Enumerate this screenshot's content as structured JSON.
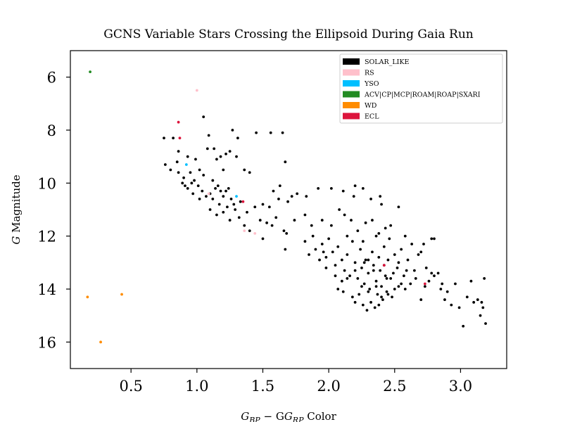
{
  "chart_data": {
    "type": "scatter",
    "title": "GCNS Variable Stars Crossing the Ellipsoid During Gaia Run",
    "xlabel": {
      "base": "G",
      "sub1": "BP",
      "mid": " − G",
      "sub2": "RP",
      "tail": " Color"
    },
    "ylabel": {
      "italic": "G",
      "rest": " Magnitude"
    },
    "xlim": [
      0.04,
      3.35
    ],
    "ylim": [
      17.0,
      5.0
    ],
    "y_inverted": true,
    "xticks": [
      {
        "value": 0.5,
        "label": "0.5"
      },
      {
        "value": 1.0,
        "label": "1.0"
      },
      {
        "value": 1.5,
        "label": "1.5"
      },
      {
        "value": 2.0,
        "label": "2.0"
      },
      {
        "value": 2.5,
        "label": "2.5"
      },
      {
        "value": 3.0,
        "label": "3.0"
      }
    ],
    "yticks": [
      {
        "value": 6,
        "label": "6"
      },
      {
        "value": 8,
        "label": "8"
      },
      {
        "value": 10,
        "label": "10"
      },
      {
        "value": 12,
        "label": "12"
      },
      {
        "value": 14,
        "label": "14"
      },
      {
        "value": 16,
        "label": "16"
      }
    ],
    "grid": false,
    "legend_position": "top-right",
    "series": [
      {
        "name": "SOLAR_LIKE",
        "color": "#000000",
        "points": [
          [
            0.75,
            8.3
          ],
          [
            0.82,
            8.3
          ],
          [
            0.86,
            8.8
          ],
          [
            1.05,
            7.5
          ],
          [
            1.09,
            8.2
          ],
          [
            1.27,
            8.0
          ],
          [
            1.31,
            8.3
          ],
          [
            1.45,
            8.1
          ],
          [
            1.56,
            8.1
          ],
          [
            1.65,
            8.1
          ],
          [
            0.85,
            9.2
          ],
          [
            0.93,
            9.0
          ],
          [
            0.99,
            9.1
          ],
          [
            1.02,
            9.5
          ],
          [
            1.08,
            8.7
          ],
          [
            1.13,
            8.7
          ],
          [
            1.15,
            9.1
          ],
          [
            1.18,
            9.0
          ],
          [
            1.2,
            9.5
          ],
          [
            1.22,
            8.9
          ],
          [
            1.25,
            8.8
          ],
          [
            1.3,
            9.0
          ],
          [
            1.36,
            9.5
          ],
          [
            1.4,
            9.6
          ],
          [
            0.76,
            9.3
          ],
          [
            0.8,
            9.5
          ],
          [
            0.86,
            9.6
          ],
          [
            0.9,
            9.8
          ],
          [
            0.95,
            9.6
          ],
          [
            0.98,
            9.9
          ],
          [
            0.91,
            10.1
          ],
          [
            0.93,
            10.2
          ],
          [
            0.96,
            10.0
          ],
          [
            1.01,
            10.1
          ],
          [
            1.04,
            10.3
          ],
          [
            1.07,
            10.5
          ],
          [
            1.1,
            10.4
          ],
          [
            1.12,
            10.6
          ],
          [
            1.14,
            10.2
          ],
          [
            1.17,
            10.8
          ],
          [
            1.2,
            10.5
          ],
          [
            1.23,
            10.9
          ],
          [
            1.26,
            10.6
          ],
          [
            1.29,
            11.0
          ],
          [
            1.33,
            10.7
          ],
          [
            1.38,
            11.1
          ],
          [
            1.44,
            10.9
          ],
          [
            1.5,
            10.8
          ],
          [
            1.55,
            10.9
          ],
          [
            1.62,
            10.6
          ],
          [
            1.58,
            10.3
          ],
          [
            1.63,
            10.1
          ],
          [
            1.67,
            9.2
          ],
          [
            1.69,
            10.7
          ],
          [
            1.72,
            10.5
          ],
          [
            1.76,
            10.4
          ],
          [
            1.83,
            10.5
          ],
          [
            1.92,
            10.2
          ],
          [
            2.02,
            10.2
          ],
          [
            2.11,
            10.3
          ],
          [
            2.19,
            10.5
          ],
          [
            2.2,
            10.1
          ],
          [
            2.26,
            10.2
          ],
          [
            2.32,
            10.6
          ],
          [
            2.39,
            10.5
          ],
          [
            2.4,
            10.8
          ],
          [
            2.53,
            10.9
          ],
          [
            1.1,
            11.0
          ],
          [
            1.15,
            11.2
          ],
          [
            1.2,
            11.1
          ],
          [
            1.25,
            11.4
          ],
          [
            1.32,
            11.3
          ],
          [
            1.36,
            11.6
          ],
          [
            1.4,
            11.8
          ],
          [
            1.48,
            11.4
          ],
          [
            1.5,
            12.1
          ],
          [
            1.53,
            11.5
          ],
          [
            1.57,
            11.6
          ],
          [
            1.6,
            11.3
          ],
          [
            1.66,
            11.8
          ],
          [
            1.68,
            11.9
          ],
          [
            1.67,
            12.5
          ],
          [
            1.74,
            11.4
          ],
          [
            1.82,
            11.2
          ],
          [
            1.87,
            11.6
          ],
          [
            1.95,
            11.4
          ],
          [
            2.02,
            11.6
          ],
          [
            2.08,
            11.0
          ],
          [
            2.12,
            11.2
          ],
          [
            2.17,
            11.4
          ],
          [
            2.22,
            11.8
          ],
          [
            2.28,
            11.5
          ],
          [
            2.33,
            11.4
          ],
          [
            2.38,
            11.9
          ],
          [
            2.43,
            11.7
          ],
          [
            2.47,
            11.6
          ],
          [
            1.82,
            12.2
          ],
          [
            1.85,
            12.7
          ],
          [
            1.88,
            12.0
          ],
          [
            1.9,
            12.5
          ],
          [
            1.93,
            12.9
          ],
          [
            1.95,
            12.3
          ],
          [
            1.98,
            12.8
          ],
          [
            2.0,
            12.1
          ],
          [
            2.03,
            12.6
          ],
          [
            2.05,
            13.1
          ],
          [
            2.07,
            12.4
          ],
          [
            2.1,
            12.9
          ],
          [
            2.12,
            13.3
          ],
          [
            2.14,
            12.7
          ],
          [
            2.16,
            13.5
          ],
          [
            2.18,
            12.2
          ],
          [
            2.2,
            13.0
          ],
          [
            2.22,
            13.6
          ],
          [
            2.24,
            12.5
          ],
          [
            2.25,
            13.2
          ],
          [
            2.27,
            13.8
          ],
          [
            2.28,
            12.9
          ],
          [
            2.3,
            13.4
          ],
          [
            2.31,
            14.0
          ],
          [
            2.33,
            12.6
          ],
          [
            2.34,
            13.1
          ],
          [
            2.36,
            13.7
          ],
          [
            2.37,
            14.2
          ],
          [
            2.38,
            12.8
          ],
          [
            2.39,
            13.3
          ],
          [
            2.4,
            13.9
          ],
          [
            2.42,
            12.4
          ],
          [
            2.43,
            13.5
          ],
          [
            2.44,
            14.1
          ],
          [
            2.45,
            12.9
          ],
          [
            2.47,
            13.6
          ],
          [
            2.48,
            14.3
          ],
          [
            2.5,
            12.7
          ],
          [
            2.52,
            13.2
          ],
          [
            2.53,
            13.9
          ],
          [
            2.55,
            12.5
          ],
          [
            2.57,
            13.5
          ],
          [
            2.58,
            14.0
          ],
          [
            2.6,
            12.9
          ],
          [
            2.62,
            13.8
          ],
          [
            2.65,
            13.3
          ],
          [
            2.68,
            12.7
          ],
          [
            2.7,
            14.4
          ],
          [
            2.72,
            12.3
          ],
          [
            2.74,
            13.2
          ],
          [
            2.76,
            13.7
          ],
          [
            2.78,
            12.1
          ],
          [
            2.8,
            13.5
          ],
          [
            2.83,
            13.4
          ],
          [
            2.85,
            14.0
          ],
          [
            2.88,
            14.4
          ],
          [
            2.9,
            14.1
          ],
          [
            2.93,
            14.6
          ],
          [
            2.96,
            13.8
          ],
          [
            2.99,
            14.7
          ],
          [
            3.02,
            15.4
          ],
          [
            3.05,
            14.3
          ],
          [
            3.08,
            13.7
          ],
          [
            3.1,
            14.5
          ],
          [
            3.13,
            14.4
          ],
          [
            3.15,
            15.0
          ],
          [
            3.16,
            14.5
          ],
          [
            3.18,
            13.6
          ],
          [
            3.19,
            15.3
          ],
          [
            3.17,
            14.7
          ],
          [
            2.2,
            14.5
          ],
          [
            2.23,
            14.2
          ],
          [
            2.26,
            14.6
          ],
          [
            2.29,
            14.8
          ],
          [
            2.32,
            14.5
          ],
          [
            2.35,
            14.7
          ],
          [
            2.38,
            14.6
          ],
          [
            2.41,
            14.4
          ],
          [
            2.45,
            14.2
          ],
          [
            2.5,
            14.0
          ],
          [
            2.55,
            13.8
          ],
          [
            2.1,
            13.7
          ],
          [
            2.07,
            14.0
          ],
          [
            2.05,
            13.5
          ],
          [
            1.98,
            13.2
          ],
          [
            1.96,
            12.6
          ],
          [
            2.14,
            12.0
          ],
          [
            2.26,
            12.2
          ],
          [
            2.36,
            12.0
          ],
          [
            2.46,
            12.1
          ],
          [
            2.58,
            12.0
          ],
          [
            2.63,
            12.3
          ],
          [
            2.7,
            12.6
          ],
          [
            2.8,
            12.1
          ],
          [
            2.3,
            12.9
          ],
          [
            2.27,
            13.0
          ],
          [
            2.34,
            13.3
          ],
          [
            2.42,
            13.1
          ],
          [
            2.2,
            13.3
          ],
          [
            2.14,
            13.6
          ],
          [
            2.11,
            14.1
          ],
          [
            2.18,
            14.3
          ],
          [
            2.25,
            13.9
          ],
          [
            2.3,
            14.1
          ],
          [
            2.36,
            13.9
          ],
          [
            2.4,
            14.3
          ],
          [
            2.44,
            13.6
          ],
          [
            2.49,
            13.4
          ],
          [
            2.53,
            13.0
          ],
          [
            2.59,
            13.3
          ],
          [
            2.66,
            13.6
          ],
          [
            2.73,
            13.9
          ],
          [
            2.78,
            13.4
          ],
          [
            2.86,
            13.8
          ],
          [
            1.05,
            9.7
          ],
          [
            1.12,
            9.9
          ],
          [
            1.16,
            10.1
          ],
          [
            1.22,
            10.3
          ],
          [
            1.28,
            10.8
          ],
          [
            1.02,
            10.6
          ],
          [
            0.97,
            10.4
          ],
          [
            0.89,
            10.0
          ],
          [
            1.18,
            10.3
          ],
          [
            1.24,
            10.2
          ]
        ]
      },
      {
        "name": "RS",
        "color": "#ffc0cb",
        "points": [
          [
            1.0,
            6.5
          ],
          [
            1.36,
            11.8
          ],
          [
            1.44,
            11.9
          ],
          [
            1.09,
            10.4
          ]
        ]
      },
      {
        "name": "YSO",
        "color": "#00bfff",
        "points": [
          [
            0.92,
            9.3
          ],
          [
            1.3,
            10.5
          ]
        ]
      },
      {
        "name": "ACV|CP|MCP|ROAM|ROAP|SXARI",
        "color": "#228b22",
        "points": [
          [
            0.19,
            5.8
          ]
        ]
      },
      {
        "name": "WD",
        "color": "#ff8c00",
        "points": [
          [
            0.17,
            14.3
          ],
          [
            0.43,
            14.2
          ],
          [
            0.27,
            16.0
          ]
        ]
      },
      {
        "name": "ECL",
        "color": "#dc143c",
        "points": [
          [
            0.86,
            7.7
          ],
          [
            0.87,
            8.3
          ],
          [
            1.35,
            10.7
          ],
          [
            2.42,
            13.1
          ],
          [
            2.73,
            13.8
          ]
        ]
      }
    ]
  }
}
